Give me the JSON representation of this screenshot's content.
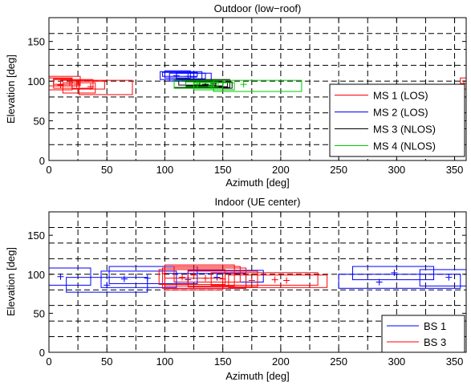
{
  "chart_data": [
    {
      "type": "scatter",
      "title": "Outdoor (low−roof)",
      "xlabel": "Azimuth [deg]",
      "ylabel": "Elevation [deg]",
      "xlim": [
        0,
        360
      ],
      "ylim": [
        0,
        180
      ],
      "xticks": [
        0,
        50,
        100,
        150,
        200,
        250,
        300,
        350
      ],
      "yticks": [
        0,
        50,
        100,
        150
      ],
      "grid": true,
      "legend_position": "bottom-right",
      "series": [
        {
          "name": "MS 1 (LOS)",
          "color": "#ff0000",
          "boxes": [
            {
              "x": [
                0,
                27
              ],
              "y": [
                94,
                106
              ]
            },
            {
              "x": [
                0,
                20
              ],
              "y": [
                89,
                104
              ]
            },
            {
              "x": [
                4,
                38
              ],
              "y": [
                91,
                102
              ]
            },
            {
              "x": [
                10,
                26
              ],
              "y": [
                94,
                101
              ]
            },
            {
              "x": [
                12,
                40
              ],
              "y": [
                85,
                98
              ]
            },
            {
              "x": [
                20,
                48
              ],
              "y": [
                90,
                100
              ]
            },
            {
              "x": [
                26,
                72
              ],
              "y": [
                83,
                101
              ]
            },
            {
              "x": [
                4,
                20
              ],
              "y": [
                96,
                103
              ]
            },
            {
              "x": [
                355,
                360
              ],
              "y": [
                90,
                104
              ]
            }
          ],
          "points": [
            [
              18,
              98
            ],
            [
              10,
              95
            ],
            [
              36,
              93
            ],
            [
              24,
              96
            ],
            [
              358,
              97
            ]
          ]
        },
        {
          "name": "MS 2 (LOS)",
          "color": "#0000ff",
          "boxes": [
            {
              "x": [
                96,
                132
              ],
              "y": [
                102,
                112
              ]
            },
            {
              "x": [
                100,
                122
              ],
              "y": [
                104,
                113
              ]
            },
            {
              "x": [
                104,
                140
              ],
              "y": [
                100,
                110
              ]
            },
            {
              "x": [
                110,
                135
              ],
              "y": [
                103,
                110
              ]
            },
            {
              "x": [
                98,
                128
              ],
              "y": [
                106,
                111
              ]
            }
          ],
          "points": [
            [
              110,
              107
            ],
            [
              120,
              106
            ],
            [
              125,
              105
            ]
          ]
        },
        {
          "name": "MS 3 (NLOS)",
          "color": "#000000",
          "boxes": [
            {
              "x": [
                108,
                156
              ],
              "y": [
                92,
                102
              ]
            },
            {
              "x": [
                118,
                150
              ],
              "y": [
                94,
                100
              ]
            },
            {
              "x": [
                125,
                158
              ],
              "y": [
                91,
                99
              ]
            },
            {
              "x": [
                130,
                154
              ],
              "y": [
                93,
                101
              ]
            },
            {
              "x": [
                112,
                144
              ],
              "y": [
                95,
                101
              ]
            }
          ],
          "points": [
            [
              135,
              96
            ],
            [
              142,
              97
            ],
            [
              130,
              95
            ]
          ]
        },
        {
          "name": "MS 4 (NLOS)",
          "color": "#00cc00",
          "boxes": [
            {
              "x": [
                108,
                150
              ],
              "y": [
                91,
                101
              ]
            },
            {
              "x": [
                125,
                160
              ],
              "y": [
                89,
                98
              ]
            },
            {
              "x": [
                142,
                218
              ],
              "y": [
                87,
                101
              ]
            },
            {
              "x": [
                118,
                146
              ],
              "y": [
                93,
                99
              ]
            }
          ],
          "points": [
            [
              168,
              96
            ],
            [
              140,
              94
            ],
            [
              128,
              96
            ]
          ]
        }
      ]
    },
    {
      "type": "scatter",
      "title": "Indoor (UE center)",
      "xlabel": "Azimuth [deg]",
      "ylabel": "Elevation [deg]",
      "xlim": [
        0,
        360
      ],
      "ylim": [
        0,
        180
      ],
      "xticks": [
        0,
        50,
        100,
        150,
        200,
        250,
        300,
        350
      ],
      "yticks": [
        0,
        50,
        100,
        150
      ],
      "grid": true,
      "legend_position": "bottom-right",
      "series": [
        {
          "name": "BS 1",
          "color": "#0000ff",
          "boxes": [
            {
              "x": [
                0,
                36
              ],
              "y": [
                86,
                108
              ]
            },
            {
              "x": [
                15,
                85
              ],
              "y": [
                77,
                96
              ]
            },
            {
              "x": [
                45,
                110
              ],
              "y": [
                83,
                104
              ]
            },
            {
              "x": [
                52,
                128
              ],
              "y": [
                88,
                110
              ]
            },
            {
              "x": [
                100,
                170
              ],
              "y": [
                82,
                101
              ]
            },
            {
              "x": [
                120,
                185
              ],
              "y": [
                90,
                105
              ]
            },
            {
              "x": [
                250,
                355
              ],
              "y": [
                82,
                100
              ]
            },
            {
              "x": [
                262,
                332
              ],
              "y": [
                93,
                110
              ]
            },
            {
              "x": [
                320,
                360
              ],
              "y": [
                85,
                106
              ]
            }
          ],
          "points": [
            [
              10,
              97
            ],
            [
              50,
              86
            ],
            [
              65,
              94
            ],
            [
              85,
              95
            ],
            [
              120,
              93
            ],
            [
              145,
              96
            ],
            [
              285,
              90
            ],
            [
              298,
              102
            ],
            [
              345,
              96
            ]
          ]
        },
        {
          "name": "BS 3",
          "color": "#ff0000",
          "boxes": [
            {
              "x": [
                98,
                170
              ],
              "y": [
                82,
                108
              ]
            },
            {
              "x": [
                100,
                160
              ],
              "y": [
                85,
                112
              ]
            },
            {
              "x": [
                95,
                152
              ],
              "y": [
                87,
                106
              ]
            },
            {
              "x": [
                120,
                180
              ],
              "y": [
                84,
                104
              ]
            },
            {
              "x": [
                140,
                232
              ],
              "y": [
                86,
                102
              ]
            },
            {
              "x": [
                155,
                240
              ],
              "y": [
                83,
                99
              ]
            },
            {
              "x": [
                108,
                165
              ],
              "y": [
                90,
                110
              ]
            },
            {
              "x": [
                100,
                150
              ],
              "y": [
                80,
                95
              ]
            }
          ],
          "points": [
            [
              100,
              101
            ],
            [
              115,
              96
            ],
            [
              135,
              95
            ],
            [
              150,
              94
            ],
            [
              175,
              92
            ],
            [
              195,
              93
            ],
            [
              205,
              92
            ],
            [
              125,
              99
            ]
          ]
        }
      ]
    }
  ]
}
